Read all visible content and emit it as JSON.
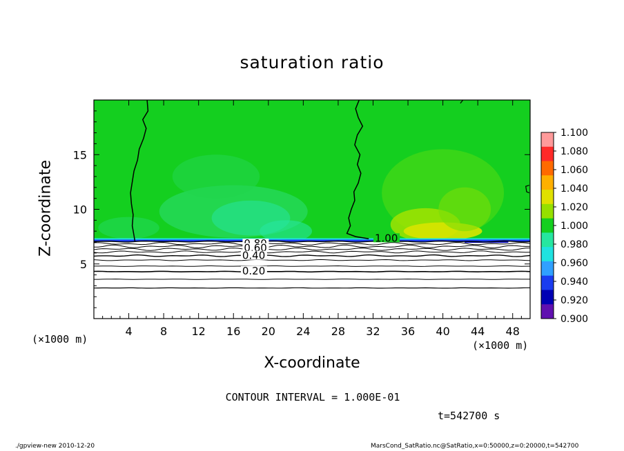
{
  "figure": {
    "title": "saturation ratio",
    "xlabel": "X-coordinate",
    "ylabel": "Z-coordinate",
    "x_unit": "(×1000 m)",
    "y_unit": "(×1000 m)",
    "contour_interval": "CONTOUR INTERVAL = 1.000E-01",
    "time_label": "t=542700 s",
    "footer_left": "./gpview-new  2010-12-20",
    "footer_right": "MarsCond_SatRatio.nc@SatRatio,x=0:50000,z=0:20000,t=542700"
  },
  "chart_data": {
    "type": "heatmap",
    "title": "saturation ratio",
    "xlabel": "X-coordinate",
    "ylabel": "Z-coordinate",
    "x_unit": "(×1000 m)",
    "y_unit": "(×1000 m)",
    "xlim": [
      0,
      50
    ],
    "ylim": [
      0,
      20
    ],
    "x_ticks": [
      4,
      8,
      12,
      16,
      20,
      24,
      28,
      32,
      36,
      40,
      44,
      48
    ],
    "y_ticks": [
      5,
      10,
      15
    ],
    "contour_interval": 0.1,
    "contour_labels": [
      {
        "text": "1.00",
        "x": 32.2,
        "z": 7.3
      },
      {
        "text": "0.80",
        "x": 17.2,
        "z": 6.8
      },
      {
        "text": "0.60",
        "x": 17.2,
        "z": 6.4
      },
      {
        "text": "0.40",
        "x": 17.0,
        "z": 5.7
      },
      {
        "text": "0.20",
        "x": 17.0,
        "z": 4.3
      }
    ],
    "cloud_base_z": 7.1,
    "saturated_region_value": 1.0,
    "colorbar": {
      "min": 0.9,
      "max": 1.1,
      "labels": [
        "1.100",
        "1.080",
        "1.060",
        "1.040",
        "1.020",
        "1.000",
        "0.980",
        "0.960",
        "0.940",
        "0.920",
        "0.900"
      ],
      "colors": [
        "#ff9a9a",
        "#ff2a28",
        "#ff6a00",
        "#ffb000",
        "#e0e000",
        "#96e000",
        "#14cf1f",
        "#26e6a0",
        "#1fe2e0",
        "#30a0ff",
        "#1a3cf0",
        "#0000b4",
        "#6010b0"
      ]
    },
    "time_s": 542700
  }
}
